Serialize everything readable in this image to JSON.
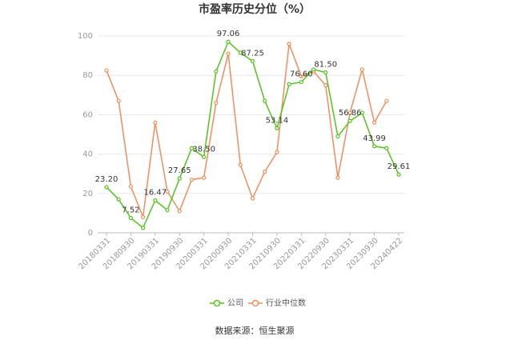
{
  "chart_data": {
    "type": "line",
    "title": "市盈率历史分位（%）",
    "categories": [
      "20180331",
      null,
      "20180930",
      null,
      "20190331",
      null,
      "20190930",
      null,
      "20200331",
      null,
      "20200930",
      null,
      "20210331",
      null,
      "20210930",
      null,
      "20220331",
      null,
      "20220930",
      null,
      "20230331",
      null,
      "20230930",
      null,
      "20240422"
    ],
    "series": [
      {
        "name": "公司",
        "color": "#52c41a",
        "values": [
          23.2,
          17,
          7.52,
          2.5,
          16.47,
          11.5,
          27.65,
          43,
          38.5,
          82,
          97.06,
          91.5,
          87.25,
          67,
          53.14,
          75.5,
          76.6,
          83,
          81.5,
          49,
          56.86,
          61,
          43.99,
          43,
          29.61
        ],
        "value_labels": [
          "23.20",
          null,
          "7.52",
          null,
          "16.47",
          null,
          "27.65",
          null,
          "38.50",
          null,
          "97.06",
          null,
          "87.25",
          null,
          "53.14",
          null,
          "76.60",
          null,
          "81.50",
          null,
          "56.86",
          null,
          "43.99",
          null,
          "29.61"
        ]
      },
      {
        "name": "行业中位数",
        "color": "#f28c5c",
        "values": [
          82.5,
          67,
          23.5,
          8,
          56,
          21,
          11,
          27,
          28,
          66,
          91,
          34.5,
          17.5,
          31,
          41,
          96,
          79.5,
          82,
          75,
          28,
          61,
          83,
          56,
          67,
          null
        ]
      }
    ],
    "ylim": [
      0,
      100
    ],
    "yticks": [
      0,
      20,
      40,
      60,
      80,
      100
    ],
    "grid": true,
    "source": "数据来源：恒生聚源"
  }
}
